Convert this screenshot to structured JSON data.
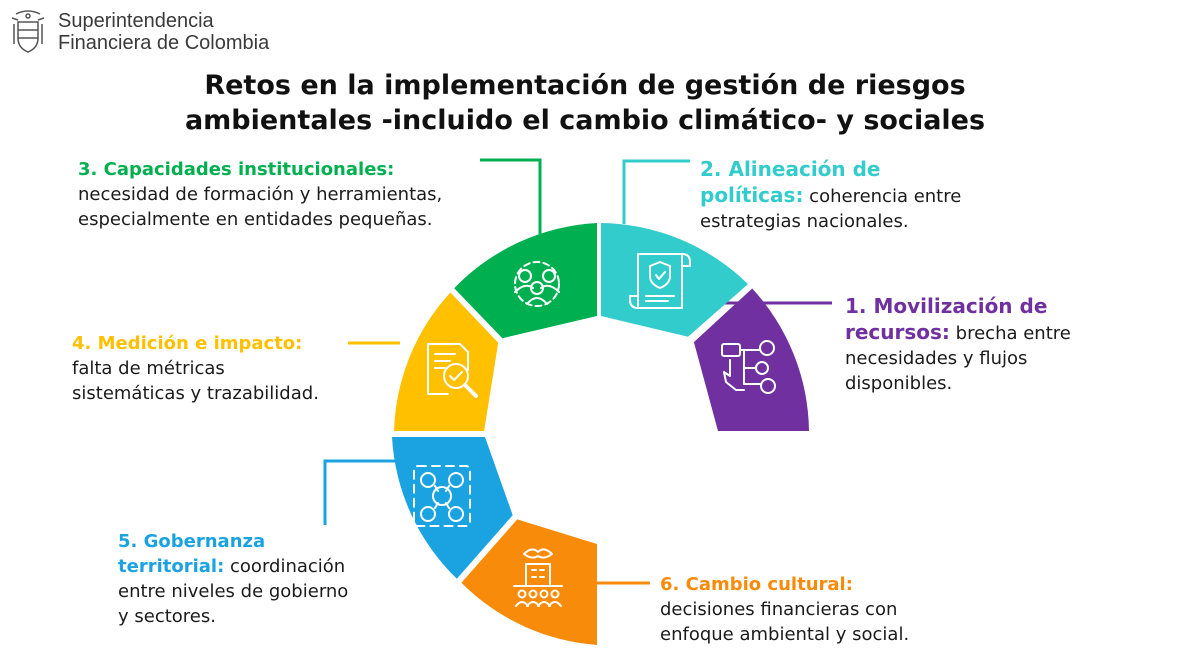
{
  "brand": {
    "line1": "Superintendencia",
    "line2": "Financiera de Colombia",
    "seal_icon": "colombia-coat-of-arms-icon"
  },
  "title": {
    "line1": "Retos en la implementación de gestión de riesgos",
    "line2": "ambientales -incluido el cambio climático- y sociales"
  },
  "segments": [
    {
      "id": "1",
      "heading_a": "1. Movilización de",
      "heading_b": "recursos:",
      "text_a": "brecha entre",
      "text_b": "necesidades y flujos",
      "text_c": "disponibles.",
      "color": "#7030a0",
      "icon": "hand-pressing-network-icon"
    },
    {
      "id": "2",
      "heading_a": "2. Alineación de",
      "heading_b": "políticas:",
      "text_a": "coherencia entre",
      "text_b": "estrategias nacionales.",
      "color": "#33cccc",
      "icon": "policy-document-shield-icon"
    },
    {
      "id": "3",
      "heading_a": "3. Capacidades institucionales:",
      "text_a": "necesidad de formación y herramientas,",
      "text_b": "especialmente en entidades pequeñas.",
      "color": "#00b050",
      "icon": "team-gear-icon"
    },
    {
      "id": "4",
      "heading_a": "4. Medición e impacto:",
      "text_a": "falta de métricas",
      "text_b": "sistemáticas y trazabilidad.",
      "color": "#ffc000",
      "icon": "document-magnifier-icon"
    },
    {
      "id": "5",
      "heading_a": "5. Gobernanza",
      "heading_b": "territorial:",
      "text_a": "coordinación",
      "text_b": "entre niveles de gobierno",
      "text_c": "y sectores.",
      "color": "#1aa3e0",
      "icon": "people-network-icon"
    },
    {
      "id": "6",
      "heading_a": "6. Cambio cultural:",
      "text_a": "decisiones financieras con",
      "text_b": "enfoque ambiental y social.",
      "color": "#f98b0b",
      "icon": "green-building-community-icon"
    }
  ]
}
